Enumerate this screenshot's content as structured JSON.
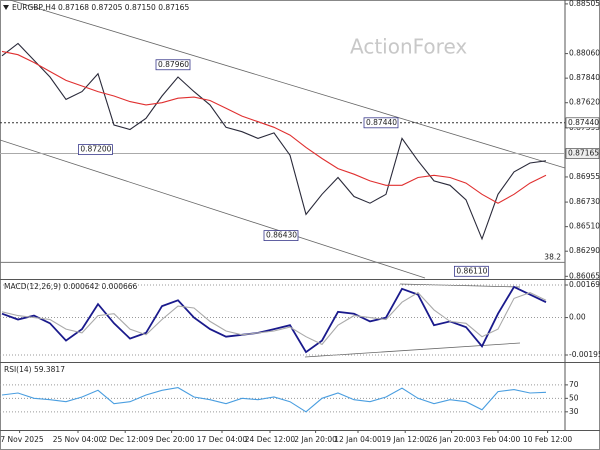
{
  "chart_data": [
    {
      "type": "line",
      "title": "EURGBP,H4",
      "subtitle": "0.87168 0.87205 0.87150 0.87165",
      "watermark": "ActionForex",
      "x": [
        0,
        1,
        2,
        3,
        4,
        5,
        6,
        7,
        8,
        9,
        10,
        11,
        12,
        13,
        14,
        15,
        16,
        17,
        18,
        19,
        20,
        21,
        22,
        23,
        24,
        25,
        26,
        27,
        28,
        29,
        30,
        31,
        32,
        33,
        34
      ],
      "xlim": [
        0,
        35
      ],
      "series": [
        {
          "name": "Price",
          "color": "#2a2a3a",
          "values": [
            0.8804,
            0.8815,
            0.88,
            0.8785,
            0.8765,
            0.8772,
            0.8788,
            0.8742,
            0.8738,
            0.8748,
            0.8768,
            0.8785,
            0.8772,
            0.876,
            0.874,
            0.8736,
            0.873,
            0.8735,
            0.8715,
            0.8662,
            0.868,
            0.8695,
            0.8678,
            0.8672,
            0.868,
            0.873,
            0.871,
            0.8692,
            0.8688,
            0.8675,
            0.864,
            0.868,
            0.87,
            0.8708,
            0.871
          ]
        },
        {
          "name": "SMA",
          "color": "#e03030",
          "values": [
            0.8808,
            0.8805,
            0.8798,
            0.879,
            0.8782,
            0.8777,
            0.8772,
            0.8768,
            0.8763,
            0.876,
            0.8762,
            0.8766,
            0.8767,
            0.8764,
            0.8757,
            0.875,
            0.8745,
            0.874,
            0.8733,
            0.8722,
            0.8712,
            0.8703,
            0.8698,
            0.8692,
            0.8688,
            0.8688,
            0.8695,
            0.8697,
            0.8695,
            0.869,
            0.868,
            0.8672,
            0.868,
            0.869,
            0.8697
          ]
        }
      ],
      "ylim": [
        0.8605,
        0.8854
      ],
      "yticks": [
        {
          "value": 0.88505,
          "label": "0.88505"
        },
        {
          "value": 0.8806,
          "label": "0.88060"
        },
        {
          "value": 0.8784,
          "label": "0.87840"
        },
        {
          "value": 0.8762,
          "label": "0.87620"
        },
        {
          "value": 0.87395,
          "label": "0.87395"
        },
        {
          "value": 0.86955,
          "label": "0.86955"
        },
        {
          "value": 0.8673,
          "label": "0.86730"
        },
        {
          "value": 0.8651,
          "label": "0.86510"
        },
        {
          "value": 0.8629,
          "label": "0.86290"
        },
        {
          "value": 0.86065,
          "label": "0.86065"
        }
      ],
      "levels": [
        {
          "value": 0.8744,
          "label": "0.87440",
          "style": "dashed"
        },
        {
          "value": 0.87165,
          "label": "0.87165",
          "style": "solid"
        }
      ],
      "fib_level": {
        "value": 0.8619,
        "label": "38.2"
      },
      "annotations": [
        {
          "x": 11.75,
          "value": 0.8796,
          "label": "0.87960"
        },
        {
          "x": 6.9,
          "value": 0.872,
          "label": "0.87200"
        },
        {
          "x": 18.5,
          "value": 0.8643,
          "label": "0.86430"
        },
        {
          "x": 24.75,
          "value": 0.8744,
          "label": "0.87440"
        },
        {
          "x": 30.4,
          "value": 0.8611,
          "label": "0.86110"
        }
      ],
      "grid": false
    },
    {
      "type": "line",
      "title": "MACD(12,26,9) 0.000642 0.000666",
      "x": [
        0,
        1,
        2,
        3,
        4,
        5,
        6,
        7,
        8,
        9,
        10,
        11,
        12,
        13,
        14,
        15,
        16,
        17,
        18,
        19,
        20,
        21,
        22,
        23,
        24,
        25,
        26,
        27,
        28,
        29,
        30,
        31,
        32,
        33,
        34
      ],
      "xlim": [
        0,
        35
      ],
      "series": [
        {
          "name": "MACD",
          "color": "#1a1a8c",
          "values": [
            0.0002,
            -0.0001,
            0.0001,
            -0.0003,
            -0.0012,
            -0.0006,
            0.0007,
            -0.0003,
            -0.0011,
            -0.0008,
            0.0006,
            0.0009,
            0.0,
            -0.0006,
            -0.001,
            -0.0009,
            -0.0008,
            -0.0006,
            -0.0004,
            -0.0018,
            -0.0012,
            0.0003,
            0.0002,
            -0.0002,
            0.0,
            0.0015,
            0.0012,
            -0.0004,
            -0.0002,
            -0.0005,
            -0.0015,
            0.0002,
            0.0016,
            0.0012,
            0.0008
          ]
        },
        {
          "name": "Signal",
          "color": "#aaaaaa",
          "values": [
            0.0003,
            0.0001,
            0.0,
            -0.0001,
            -0.0006,
            -0.0008,
            0.0001,
            0.0002,
            -0.0006,
            -0.0009,
            -0.0001,
            0.0006,
            0.0005,
            -0.0002,
            -0.0007,
            -0.0009,
            -0.0008,
            -0.0007,
            -0.0005,
            -0.001,
            -0.0014,
            -0.0004,
            0.0001,
            0.0,
            -0.0001,
            0.0008,
            0.0013,
            0.0004,
            -0.0002,
            -0.0003,
            -0.001,
            -0.0006,
            0.001,
            0.0013,
            0.0009
          ]
        }
      ],
      "ylim": [
        -0.002266,
        0.001907
      ],
      "yticks": [
        0.001698,
        {
          "value": 0,
          "label": "0.00"
        },
        -0.001953
      ],
      "grid": true
    },
    {
      "type": "line",
      "title": "RSI(14) 59.3817",
      "x": [
        0,
        1,
        2,
        3,
        4,
        5,
        6,
        7,
        8,
        9,
        10,
        11,
        12,
        13,
        14,
        15,
        16,
        17,
        18,
        19,
        20,
        21,
        22,
        23,
        24,
        25,
        26,
        27,
        28,
        29,
        30,
        31,
        32,
        33,
        34
      ],
      "xlim": [
        0,
        35
      ],
      "series": [
        {
          "name": "RSI",
          "color": "#4a9ee0",
          "values": [
            55,
            58,
            50,
            48,
            45,
            52,
            62,
            42,
            45,
            55,
            62,
            66,
            52,
            48,
            42,
            50,
            48,
            52,
            45,
            30,
            50,
            58,
            48,
            45,
            52,
            65,
            50,
            42,
            48,
            45,
            33,
            60,
            63,
            58,
            59
          ]
        }
      ],
      "ylim": [
        3,
        101
      ],
      "yticks": [
        70,
        50,
        30
      ],
      "xticks": [
        {
          "value": 1.1,
          "label": "17 Nov 2025"
        },
        {
          "value": 4.75,
          "label": "25 Nov 04:00"
        },
        {
          "value": 7.7,
          "label": "2 Dec 12:00"
        },
        {
          "value": 10.6,
          "label": "9 Dec 20:00"
        },
        {
          "value": 13.75,
          "label": "17 Dec 04:00"
        },
        {
          "value": 16.75,
          "label": "24 Dec 12:00"
        },
        {
          "value": 19.6,
          "label": "2 Jan 20:00"
        },
        {
          "value": 22.25,
          "label": "12 Jan 04:00"
        },
        {
          "value": 25.2,
          "label": "19 Jan 12:00"
        },
        {
          "value": 28.1,
          "label": "26 Jan 20:00"
        },
        {
          "value": 31,
          "label": "3 Feb 04:00"
        },
        {
          "value": 34.1,
          "label": "10 Feb 12:00"
        }
      ],
      "grid": true
    }
  ]
}
